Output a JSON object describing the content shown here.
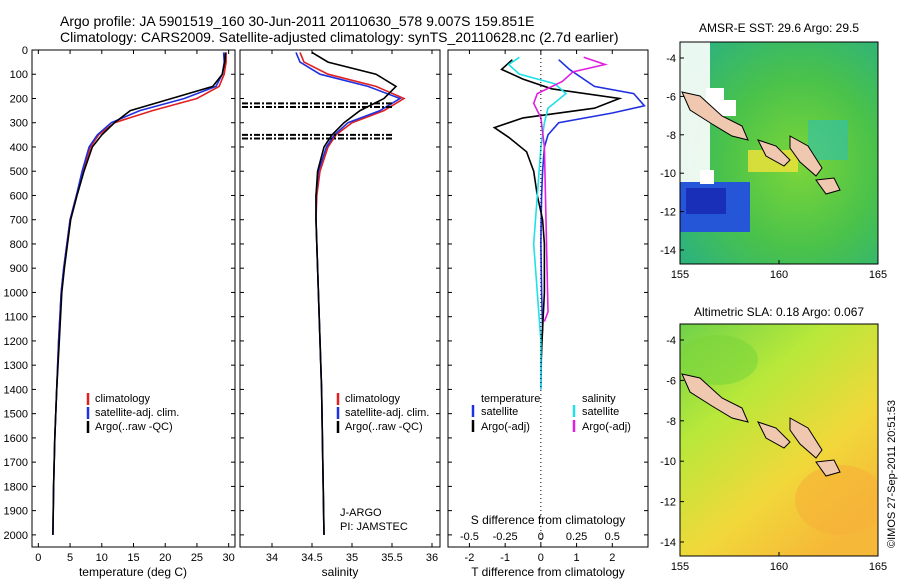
{
  "title": {
    "line1": "Argo profile: JA 5901519_160 30-Jun-2011 20110630_578 9.007S 159.851E",
    "line2": "Climatology: CARS2009. Satellite-adjusted climatology: synTS_20110628.nc (2.7d earlier)"
  },
  "colors": {
    "climatology": "#e02020",
    "satellite": "#2030e0",
    "argo": "#000000",
    "salinity_sat": "#20e0e8",
    "salinity_argo": "#e020e0"
  },
  "chart_data": [
    {
      "type": "line",
      "name": "temperature-profile",
      "xlabel": "temperature (deg C)",
      "xlim": [
        -1,
        31
      ],
      "xticks": [
        0,
        5,
        10,
        15,
        20,
        25,
        30
      ],
      "ylim": [
        2050,
        0
      ],
      "yticks": [
        0,
        100,
        200,
        300,
        400,
        500,
        600,
        700,
        800,
        900,
        1000,
        1100,
        1200,
        1300,
        1400,
        1500,
        1600,
        1700,
        1800,
        1900,
        2000
      ],
      "series": [
        {
          "name": "climatology",
          "color": "#e02020",
          "x": [
            29.6,
            29.6,
            29.3,
            28.5,
            25,
            18,
            12,
            9.5,
            8.2,
            7,
            6,
            5,
            4.5,
            4,
            3.6,
            3.2,
            2.9,
            2.6,
            2.4,
            2.3
          ],
          "y": [
            10,
            50,
            100,
            150,
            200,
            250,
            300,
            350,
            400,
            500,
            600,
            700,
            800,
            900,
            1000,
            1200,
            1400,
            1600,
            1800,
            2000
          ]
        },
        {
          "name": "satellite-adj. clim.",
          "color": "#2030e0",
          "x": [
            29.2,
            29.3,
            29,
            28,
            23,
            16,
            11.5,
            9.3,
            8,
            6.9,
            6,
            5,
            4.5,
            4,
            3.6,
            3.2,
            2.9,
            2.6,
            2.4,
            2.3
          ],
          "y": [
            10,
            50,
            100,
            150,
            200,
            250,
            300,
            350,
            400,
            500,
            600,
            700,
            800,
            900,
            1000,
            1200,
            1400,
            1600,
            1800,
            2000
          ]
        },
        {
          "name": "Argo(..raw -QC)",
          "color": "#000000",
          "x": [
            29.5,
            29.4,
            29,
            27.5,
            21,
            14.5,
            12,
            10,
            8.5,
            7.2,
            6.1,
            5.1,
            4.6,
            4.1,
            3.7,
            3.3,
            2.9,
            2.6,
            2.4,
            2.3
          ],
          "y": [
            10,
            50,
            100,
            150,
            200,
            250,
            300,
            350,
            400,
            500,
            600,
            700,
            800,
            900,
            1000,
            1200,
            1400,
            1600,
            1800,
            2000
          ]
        }
      ],
      "legend": [
        "climatology",
        "satellite-adj. clim.",
        "Argo(..raw -QC)"
      ]
    },
    {
      "type": "line",
      "name": "salinity-profile",
      "xlabel": "salinity",
      "xlim": [
        33.6,
        36.1
      ],
      "xticks": [
        34,
        34.5,
        35,
        35.5,
        36
      ],
      "ylim": [
        2050,
        0
      ],
      "series": [
        {
          "name": "climatology",
          "color": "#e02020",
          "x": [
            34.35,
            34.4,
            34.7,
            35.3,
            35.65,
            35.4,
            35,
            34.8,
            34.7,
            34.6,
            34.56,
            34.55,
            34.56,
            34.58,
            34.6,
            34.62,
            34.63,
            34.64,
            34.65
          ],
          "y": [
            10,
            50,
            100,
            150,
            200,
            250,
            300,
            350,
            400,
            500,
            600,
            700,
            800,
            1000,
            1200,
            1400,
            1600,
            1800,
            2000
          ]
        },
        {
          "name": "satellite-adj. clim.",
          "color": "#2030e0",
          "x": [
            34.3,
            34.35,
            34.6,
            35.2,
            35.6,
            35.35,
            34.95,
            34.78,
            34.68,
            34.58,
            34.55,
            34.55,
            34.56,
            34.58,
            34.6,
            34.62,
            34.63,
            34.64,
            34.65
          ],
          "y": [
            10,
            50,
            100,
            150,
            200,
            250,
            300,
            350,
            400,
            500,
            600,
            700,
            800,
            1000,
            1200,
            1400,
            1600,
            1800,
            2000
          ]
        },
        {
          "name": "Argo(..raw -QC)",
          "color": "#000000",
          "x": [
            34.5,
            34.7,
            35.3,
            35.55,
            35.4,
            35.1,
            34.9,
            34.75,
            34.65,
            34.57,
            34.55,
            34.55,
            34.56,
            34.58,
            34.6,
            34.62,
            34.63,
            34.64,
            34.65
          ],
          "y": [
            10,
            50,
            100,
            150,
            200,
            250,
            300,
            350,
            400,
            500,
            600,
            700,
            800,
            1000,
            1200,
            1400,
            1600,
            1800,
            2000
          ]
        }
      ],
      "flagged_depths": [
        220,
        235,
        350,
        365
      ],
      "legend": [
        "climatology",
        "satellite-adj. clim.",
        "Argo(..raw -QC)"
      ],
      "annotation": [
        "J-ARGO",
        "PI: JAMSTEC"
      ]
    },
    {
      "type": "line",
      "name": "difference-profile",
      "xlabel": "T difference from climatology",
      "xlabel_top": "S difference from climatology",
      "xlim": [
        -2.6,
        3
      ],
      "xticks": [
        -2,
        -1,
        0,
        1,
        2
      ],
      "s_ticks": [
        {
          "v": -0.5,
          "label": "-0.5"
        },
        {
          "v": -0.25,
          "label": "-0.25"
        },
        {
          "v": 0,
          "label": "0"
        },
        {
          "v": 0.25,
          "label": "0.25"
        },
        {
          "v": 0.5,
          "label": "0.5"
        }
      ],
      "ylim": [
        2050,
        0
      ],
      "series": [
        {
          "name": "temperature satellite",
          "color": "#2030e0",
          "x": [
            0.5,
            0.8,
            1.5,
            2.6,
            2.9,
            2.0,
            0.5,
            0.2,
            0.1,
            0.05,
            0.02,
            0.01,
            0.0,
            0.02,
            0.05,
            0.02,
            0.0
          ],
          "y": [
            40,
            80,
            150,
            180,
            230,
            260,
            300,
            350,
            400,
            500,
            600,
            700,
            800,
            1000,
            1150,
            1200,
            1400
          ]
        },
        {
          "name": "temperature Argo(-adj)",
          "color": "#000000",
          "x": [
            -0.8,
            -1.1,
            -0.5,
            0.3,
            2.2,
            1.5,
            -0.5,
            -1.3,
            -0.9,
            -0.4,
            -0.2,
            -0.1,
            0.05,
            0.1,
            0.1,
            0.05,
            0.0
          ],
          "y": [
            40,
            80,
            120,
            160,
            200,
            240,
            280,
            320,
            360,
            420,
            500,
            600,
            700,
            800,
            1000,
            1150,
            1300
          ]
        },
        {
          "name": "salinity satellite",
          "color": "#20e0e8",
          "x": [
            -0.6,
            -0.9,
            -0.6,
            0.4,
            0.7,
            0.2,
            0.1,
            0.0,
            -0.1,
            -0.2,
            -0.1,
            0.0,
            0.0
          ],
          "y": [
            30,
            60,
            100,
            140,
            180,
            240,
            300,
            400,
            600,
            800,
            1000,
            1200,
            1400
          ]
        },
        {
          "name": "salinity Argo(-adj)",
          "color": "#e020e0",
          "x": [
            1.2,
            1.8,
            0.9,
            0.6,
            -0.1,
            -0.2,
            0.0,
            0.1,
            0.2,
            0.1
          ],
          "y": [
            30,
            60,
            90,
            130,
            180,
            220,
            280,
            400,
            1080,
            1120
          ]
        }
      ],
      "legend_left_title": "temperature",
      "legend_right_title": "salinity",
      "legend_left": [
        "satellite",
        "Argo(-adj)"
      ],
      "legend_right": [
        "satellite",
        "Argo(-adj)"
      ]
    },
    {
      "type": "heatmap",
      "name": "sst-map",
      "title": "AMSR-E SST: 29.6  Argo: 29.5",
      "xticks": [
        "155",
        "160",
        "165"
      ],
      "yticks": [
        "-4",
        "-6",
        "-8",
        "-10",
        "-12",
        "-14"
      ]
    },
    {
      "type": "heatmap",
      "name": "sla-map",
      "title": "Altimetric SLA: 0.18  Argo: 0.067",
      "xticks": [
        "155",
        "160",
        "165"
      ],
      "yticks": [
        "-4",
        "-6",
        "-8",
        "-10",
        "-12",
        "-14"
      ]
    }
  ],
  "credit": "©IMOS 27-Sep-2011 20:51:53"
}
